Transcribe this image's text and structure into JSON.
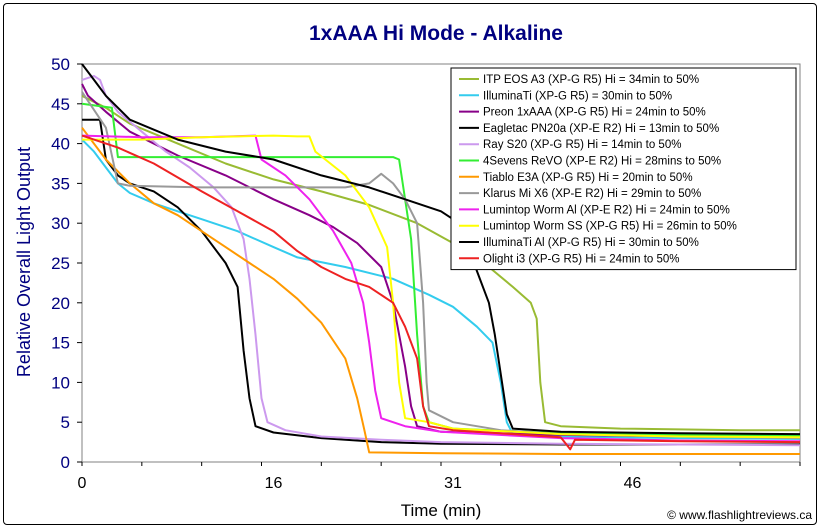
{
  "chart_data": {
    "type": "line",
    "title": "1xAAA Hi Mode - Alkaline",
    "xlabel": "Time (min)",
    "ylabel": "Relative Overall Light Output",
    "xlim": [
      0,
      60
    ],
    "ylim": [
      0,
      50
    ],
    "xticks": [
      0,
      16,
      31,
      46
    ],
    "yticks": [
      0,
      5,
      10,
      15,
      20,
      25,
      30,
      35,
      40,
      45,
      50
    ],
    "grid": false,
    "legend_position": "top-right",
    "footer": "© www.flashlightreviews.ca",
    "series": [
      {
        "name": "ITP EOS A3 (XP-G R5) Hi = 34min to 50%",
        "color": "#99bb33",
        "points": [
          [
            0,
            46
          ],
          [
            2,
            44.5
          ],
          [
            4,
            42.5
          ],
          [
            8,
            40
          ],
          [
            12,
            37.5
          ],
          [
            16,
            35.5
          ],
          [
            20,
            34
          ],
          [
            24,
            32.3
          ],
          [
            28,
            30
          ],
          [
            31,
            27.5
          ],
          [
            34,
            24.5
          ],
          [
            36,
            22
          ],
          [
            37.5,
            20
          ],
          [
            38,
            18
          ],
          [
            38.3,
            10
          ],
          [
            38.7,
            5
          ],
          [
            40,
            4.5
          ],
          [
            45,
            4.2
          ],
          [
            55,
            4.0
          ],
          [
            60,
            4.0
          ]
        ]
      },
      {
        "name": "IlluminaTi (XP-G R5) = 30min to 50%",
        "color": "#33ccee",
        "points": [
          [
            0,
            40.5
          ],
          [
            1,
            39
          ],
          [
            2,
            37
          ],
          [
            3,
            35
          ],
          [
            4,
            33.8
          ],
          [
            6,
            32.5
          ],
          [
            8,
            31.5
          ],
          [
            10,
            30.5
          ],
          [
            13,
            29
          ],
          [
            16,
            27
          ],
          [
            18,
            25.7
          ],
          [
            22,
            24.5
          ],
          [
            26,
            23
          ],
          [
            29,
            21
          ],
          [
            31,
            19.5
          ],
          [
            33,
            17
          ],
          [
            34.3,
            15
          ],
          [
            35,
            10
          ],
          [
            35.5,
            5
          ],
          [
            36,
            3.5
          ],
          [
            40,
            3.2
          ],
          [
            50,
            3.0
          ],
          [
            60,
            2.9
          ]
        ]
      },
      {
        "name": "Preon 1xAAA (XP-G R5) Hi = 24min to 50%",
        "color": "#880088",
        "points": [
          [
            0,
            47.5
          ],
          [
            0.5,
            46
          ],
          [
            2,
            44
          ],
          [
            4,
            41.5
          ],
          [
            8,
            38.5
          ],
          [
            12,
            36
          ],
          [
            16,
            33
          ],
          [
            19,
            31
          ],
          [
            21,
            29.5
          ],
          [
            23,
            27.5
          ],
          [
            25,
            24.5
          ],
          [
            26,
            20
          ],
          [
            27,
            12
          ],
          [
            27.5,
            7
          ],
          [
            28,
            4.5
          ],
          [
            30,
            3.8
          ],
          [
            40,
            3.4
          ],
          [
            50,
            3.2
          ],
          [
            60,
            3.1
          ]
        ]
      },
      {
        "name": "Eagletac PN20a (XP-E R2) Hi = 13min to 50%",
        "color": "#000000",
        "points": [
          [
            0,
            43
          ],
          [
            1.5,
            43
          ],
          [
            2,
            38
          ],
          [
            3,
            36
          ],
          [
            4,
            35
          ],
          [
            6,
            34
          ],
          [
            8,
            32
          ],
          [
            10,
            29
          ],
          [
            12,
            25
          ],
          [
            13,
            22
          ],
          [
            13.5,
            14
          ],
          [
            14,
            8
          ],
          [
            14.5,
            4.5
          ],
          [
            16,
            3.7
          ],
          [
            20,
            3.0
          ],
          [
            25,
            2.5
          ],
          [
            30,
            2.3
          ],
          [
            40,
            2.2
          ],
          [
            50,
            2.2
          ],
          [
            60,
            2.2
          ]
        ]
      },
      {
        "name": "Ray S20 (XP-G R5) Hi = 14min to 50%",
        "color": "#cc99ee",
        "points": [
          [
            0,
            48
          ],
          [
            1,
            48.5
          ],
          [
            1.5,
            48
          ],
          [
            2,
            46
          ],
          [
            3,
            44
          ],
          [
            5,
            41.5
          ],
          [
            7,
            39
          ],
          [
            9,
            37
          ],
          [
            11,
            34.5
          ],
          [
            12.5,
            32
          ],
          [
            13.5,
            28
          ],
          [
            14,
            23
          ],
          [
            14.5,
            16
          ],
          [
            15,
            8
          ],
          [
            15.5,
            5
          ],
          [
            17,
            4
          ],
          [
            20,
            3.2
          ],
          [
            25,
            2.8
          ],
          [
            30,
            2.5
          ],
          [
            40,
            2.3
          ],
          [
            50,
            2.2
          ],
          [
            60,
            2.1
          ]
        ]
      },
      {
        "name": "4Sevens ReVO (XP-E R2) Hi = 28mins to 50%",
        "color": "#33ee33",
        "points": [
          [
            0,
            45
          ],
          [
            2.5,
            44.5
          ],
          [
            3,
            38.3
          ],
          [
            10,
            38.3
          ],
          [
            20,
            38.3
          ],
          [
            26,
            38.3
          ],
          [
            26.5,
            38
          ],
          [
            27.5,
            28
          ],
          [
            28,
            16
          ],
          [
            28.5,
            7
          ],
          [
            29,
            5
          ],
          [
            31,
            4.2
          ],
          [
            40,
            3.6
          ],
          [
            50,
            3.4
          ],
          [
            60,
            3.3
          ]
        ]
      },
      {
        "name": "Tiablo E3A (XP-G R5) Hi = 20min to 50%",
        "color": "#ff9900",
        "points": [
          [
            0,
            42
          ],
          [
            2,
            38
          ],
          [
            4,
            35
          ],
          [
            6,
            32.5
          ],
          [
            8,
            31
          ],
          [
            10,
            29
          ],
          [
            12,
            27
          ],
          [
            14,
            25
          ],
          [
            16,
            23
          ],
          [
            18,
            20.5
          ],
          [
            20,
            17.5
          ],
          [
            22,
            13
          ],
          [
            23,
            8
          ],
          [
            23.6,
            4
          ],
          [
            24,
            1.2
          ],
          [
            30,
            1.1
          ],
          [
            40,
            1.0
          ],
          [
            50,
            1.0
          ],
          [
            60,
            1.0
          ]
        ]
      },
      {
        "name": "Klarus Mi X6 (XP-E R2) Hi = 29min to 50%",
        "color": "#999999",
        "points": [
          [
            0,
            46.5
          ],
          [
            2,
            42
          ],
          [
            3,
            35
          ],
          [
            4,
            34.7
          ],
          [
            10,
            34.5
          ],
          [
            16,
            34.5
          ],
          [
            22,
            34.5
          ],
          [
            24,
            35
          ],
          [
            25,
            36.2
          ],
          [
            26,
            35
          ],
          [
            27,
            33
          ],
          [
            28,
            30
          ],
          [
            28.5,
            20
          ],
          [
            28.8,
            10
          ],
          [
            29,
            6.5
          ],
          [
            31,
            5
          ],
          [
            35,
            4
          ],
          [
            40,
            3.5
          ],
          [
            50,
            3.2
          ],
          [
            60,
            3.0
          ]
        ]
      },
      {
        "name": "Lumintop Worm Al (XP-E R2) Hi = 24min to 50%",
        "color": "#ee22ee",
        "points": [
          [
            0,
            41
          ],
          [
            5,
            40.8
          ],
          [
            10,
            40.8
          ],
          [
            14.5,
            41
          ],
          [
            15,
            38
          ],
          [
            17,
            36
          ],
          [
            19,
            33
          ],
          [
            21,
            29
          ],
          [
            22.5,
            25
          ],
          [
            23.5,
            20
          ],
          [
            24,
            15
          ],
          [
            24.5,
            9
          ],
          [
            25,
            5.5
          ],
          [
            27,
            4.5
          ],
          [
            30,
            3.8
          ],
          [
            40,
            3.0
          ],
          [
            50,
            2.7
          ],
          [
            60,
            2.6
          ]
        ]
      },
      {
        "name": "Lumintop Worm SS (XP-G R5) Hi = 26min to 50%",
        "color": "#ffff00",
        "points": [
          [
            0,
            40.5
          ],
          [
            5,
            40.5
          ],
          [
            10,
            40.8
          ],
          [
            16,
            41
          ],
          [
            18,
            40.9
          ],
          [
            19,
            40.9
          ],
          [
            19.5,
            39
          ],
          [
            22,
            36
          ],
          [
            24,
            32
          ],
          [
            25.5,
            27
          ],
          [
            26,
            20
          ],
          [
            26.5,
            10
          ],
          [
            27,
            5.5
          ],
          [
            29,
            5
          ],
          [
            31,
            4.2
          ],
          [
            40,
            3.5
          ],
          [
            50,
            3.2
          ],
          [
            60,
            3.1
          ]
        ]
      },
      {
        "name": "IlluminaTi Al (XP-G R5) Hi = 30min to 50%",
        "color": "#000000",
        "points": [
          [
            0,
            50
          ],
          [
            1,
            48
          ],
          [
            2,
            46
          ],
          [
            4,
            43
          ],
          [
            8,
            40.5
          ],
          [
            12,
            39
          ],
          [
            16,
            38
          ],
          [
            20,
            36
          ],
          [
            24,
            34.5
          ],
          [
            27,
            33
          ],
          [
            30,
            31.5
          ],
          [
            31,
            30.5
          ],
          [
            32,
            28
          ],
          [
            33,
            24
          ],
          [
            34,
            20
          ],
          [
            34.5,
            16
          ],
          [
            35,
            11
          ],
          [
            35.5,
            6
          ],
          [
            36,
            4.2
          ],
          [
            40,
            3.8
          ],
          [
            50,
            3.6
          ],
          [
            60,
            3.5
          ]
        ]
      },
      {
        "name": "Olight i3 (XP-G R5) Hi = 24min to 50%",
        "color": "#ee2222",
        "points": [
          [
            0,
            41
          ],
          [
            3,
            39.5
          ],
          [
            6,
            37.5
          ],
          [
            10,
            34
          ],
          [
            13,
            31.5
          ],
          [
            16,
            29
          ],
          [
            18,
            26.5
          ],
          [
            20,
            24.5
          ],
          [
            22,
            23
          ],
          [
            24,
            22
          ],
          [
            26,
            20
          ],
          [
            27,
            17
          ],
          [
            28,
            13
          ],
          [
            28.5,
            7
          ],
          [
            29,
            4.5
          ],
          [
            31,
            4
          ],
          [
            36,
            3.5
          ],
          [
            40,
            3.1
          ],
          [
            40.8,
            1.6
          ],
          [
            41.2,
            2.8
          ],
          [
            50,
            2.6
          ],
          [
            60,
            2.5
          ]
        ]
      }
    ]
  }
}
